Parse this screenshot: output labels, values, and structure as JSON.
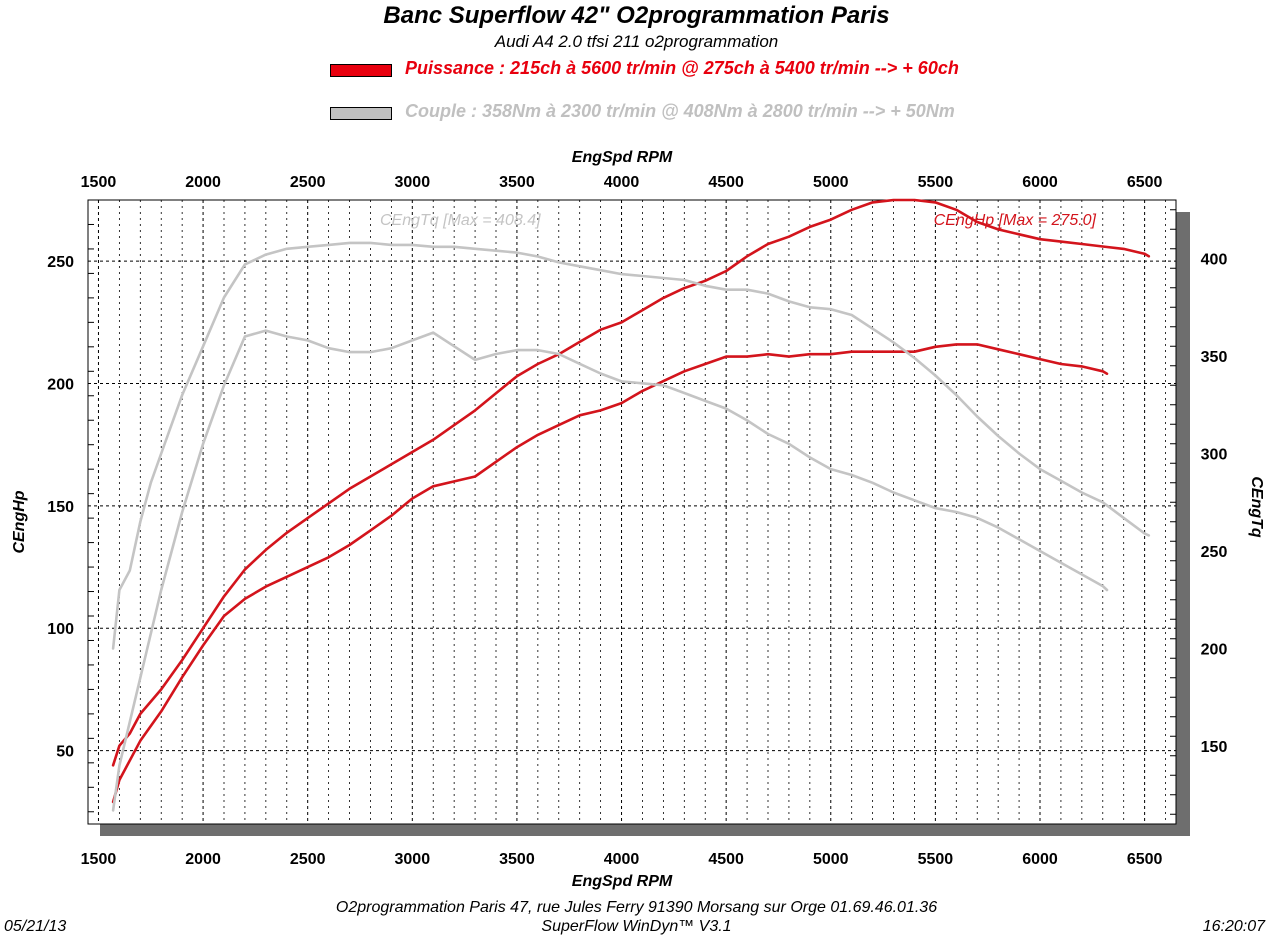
{
  "header": {
    "title": "Banc Superflow 42\" O2programmation Paris",
    "subtitle": "Audi A4 2.0 tfsi 211 o2programmation"
  },
  "legend": [
    {
      "label": "Puissance : 215ch à 5600 tr/min @ 275ch à 5400 tr/min --> + 60ch",
      "color": "#e8000e"
    },
    {
      "label": "Couple : 358Nm à 2300 tr/min @ 408Nm à 2800 tr/min --> + 50Nm",
      "color": "#c0c0c0"
    }
  ],
  "footer": {
    "date": "05/21/13",
    "address": "O2programmation Paris 47, rue Jules Ferry 91390 Morsang sur Orge 01.69.46.01.36",
    "software": "SuperFlow WinDyn™ V3.1",
    "time": "16:20:07"
  },
  "chart_data": {
    "type": "line",
    "xlabel_top": "EngSpd RPM",
    "xlabel_bottom": "EngSpd RPM",
    "ylabel_left": "CEngHp",
    "ylabel_right": "CEngTq",
    "xlim": [
      1450,
      6650
    ],
    "ylim_left": [
      20,
      275
    ],
    "ylim_right": [
      110,
      430
    ],
    "x_ticks": [
      1500,
      2000,
      2500,
      3000,
      3500,
      4000,
      4500,
      5000,
      5500,
      6000,
      6500
    ],
    "y_left_ticks": [
      50,
      100,
      150,
      200,
      250
    ],
    "y_right_ticks": [
      150,
      200,
      250,
      300,
      350,
      400
    ],
    "grid": true,
    "annotations": {
      "torque_max": "CEngTq [Max = 408.4]",
      "power_max": "CEngHp [Max = 275.0]"
    },
    "colors": {
      "power": "#d3141c",
      "torque": "#c4c4c4"
    },
    "series": [
      {
        "axis": "left",
        "kind": "power",
        "points": [
          [
            1570,
            44
          ],
          [
            1600,
            52
          ],
          [
            1650,
            57
          ],
          [
            1700,
            65
          ],
          [
            1800,
            75
          ],
          [
            1900,
            87
          ],
          [
            2000,
            100
          ],
          [
            2100,
            113
          ],
          [
            2200,
            124
          ],
          [
            2300,
            132
          ],
          [
            2400,
            139
          ],
          [
            2500,
            145
          ],
          [
            2600,
            151
          ],
          [
            2700,
            157
          ],
          [
            2800,
            162
          ],
          [
            2900,
            167
          ],
          [
            3000,
            172
          ],
          [
            3100,
            177
          ],
          [
            3200,
            183
          ],
          [
            3300,
            189
          ],
          [
            3400,
            196
          ],
          [
            3500,
            203
          ],
          [
            3600,
            208
          ],
          [
            3700,
            212
          ],
          [
            3800,
            217
          ],
          [
            3900,
            222
          ],
          [
            4000,
            225
          ],
          [
            4100,
            230
          ],
          [
            4200,
            235
          ],
          [
            4300,
            239
          ],
          [
            4400,
            242
          ],
          [
            4500,
            246
          ],
          [
            4600,
            252
          ],
          [
            4700,
            257
          ],
          [
            4800,
            260
          ],
          [
            4900,
            264
          ],
          [
            5000,
            267
          ],
          [
            5100,
            271
          ],
          [
            5200,
            274
          ],
          [
            5300,
            275
          ],
          [
            5400,
            275
          ],
          [
            5500,
            274
          ],
          [
            5600,
            271
          ],
          [
            5700,
            266
          ],
          [
            5800,
            263
          ],
          [
            5900,
            261
          ],
          [
            6000,
            259
          ],
          [
            6100,
            258
          ],
          [
            6200,
            257
          ],
          [
            6300,
            256
          ],
          [
            6400,
            255
          ],
          [
            6500,
            253
          ],
          [
            6520,
            252
          ]
        ]
      },
      {
        "axis": "left",
        "kind": "power",
        "points": [
          [
            1570,
            29
          ],
          [
            1600,
            38
          ],
          [
            1700,
            54
          ],
          [
            1800,
            66
          ],
          [
            1900,
            80
          ],
          [
            2000,
            93
          ],
          [
            2100,
            105
          ],
          [
            2200,
            112
          ],
          [
            2300,
            117
          ],
          [
            2400,
            121
          ],
          [
            2500,
            125
          ],
          [
            2600,
            129
          ],
          [
            2700,
            134
          ],
          [
            2800,
            140
          ],
          [
            2900,
            146
          ],
          [
            3000,
            153
          ],
          [
            3100,
            158
          ],
          [
            3200,
            160
          ],
          [
            3300,
            162
          ],
          [
            3400,
            168
          ],
          [
            3500,
            174
          ],
          [
            3600,
            179
          ],
          [
            3700,
            183
          ],
          [
            3800,
            187
          ],
          [
            3900,
            189
          ],
          [
            4000,
            192
          ],
          [
            4100,
            197
          ],
          [
            4200,
            201
          ],
          [
            4300,
            205
          ],
          [
            4400,
            208
          ],
          [
            4500,
            211
          ],
          [
            4600,
            211
          ],
          [
            4700,
            212
          ],
          [
            4800,
            211
          ],
          [
            4900,
            212
          ],
          [
            5000,
            212
          ],
          [
            5100,
            213
          ],
          [
            5200,
            213
          ],
          [
            5300,
            213
          ],
          [
            5400,
            213
          ],
          [
            5500,
            215
          ],
          [
            5600,
            216
          ],
          [
            5700,
            216
          ],
          [
            5800,
            214
          ],
          [
            5900,
            212
          ],
          [
            6000,
            210
          ],
          [
            6100,
            208
          ],
          [
            6200,
            207
          ],
          [
            6300,
            205
          ],
          [
            6320,
            204
          ]
        ]
      },
      {
        "axis": "right",
        "kind": "torque",
        "points": [
          [
            1570,
            200
          ],
          [
            1600,
            230
          ],
          [
            1650,
            240
          ],
          [
            1700,
            265
          ],
          [
            1750,
            285
          ],
          [
            1800,
            300
          ],
          [
            1900,
            330
          ],
          [
            2000,
            355
          ],
          [
            2100,
            380
          ],
          [
            2200,
            397
          ],
          [
            2300,
            402
          ],
          [
            2400,
            405
          ],
          [
            2500,
            406
          ],
          [
            2600,
            407
          ],
          [
            2700,
            408
          ],
          [
            2800,
            408
          ],
          [
            2900,
            407
          ],
          [
            3000,
            407
          ],
          [
            3100,
            406
          ],
          [
            3200,
            406
          ],
          [
            3300,
            405
          ],
          [
            3400,
            404
          ],
          [
            3500,
            403
          ],
          [
            3600,
            401
          ],
          [
            3700,
            398
          ],
          [
            3800,
            396
          ],
          [
            3900,
            394
          ],
          [
            4000,
            392
          ],
          [
            4100,
            391
          ],
          [
            4200,
            390
          ],
          [
            4300,
            389
          ],
          [
            4400,
            386
          ],
          [
            4500,
            384
          ],
          [
            4600,
            384
          ],
          [
            4700,
            382
          ],
          [
            4800,
            378
          ],
          [
            4900,
            375
          ],
          [
            5000,
            374
          ],
          [
            5100,
            371
          ],
          [
            5200,
            364
          ],
          [
            5300,
            357
          ],
          [
            5400,
            349
          ],
          [
            5500,
            340
          ],
          [
            5600,
            330
          ],
          [
            5700,
            319
          ],
          [
            5800,
            309
          ],
          [
            5900,
            300
          ],
          [
            6000,
            292
          ],
          [
            6100,
            286
          ],
          [
            6200,
            280
          ],
          [
            6300,
            275
          ],
          [
            6400,
            267
          ],
          [
            6500,
            259
          ],
          [
            6520,
            258
          ]
        ]
      },
      {
        "axis": "right",
        "kind": "torque",
        "points": [
          [
            1570,
            117
          ],
          [
            1600,
            140
          ],
          [
            1700,
            185
          ],
          [
            1800,
            230
          ],
          [
            1900,
            270
          ],
          [
            2000,
            305
          ],
          [
            2100,
            335
          ],
          [
            2200,
            360
          ],
          [
            2300,
            363
          ],
          [
            2400,
            360
          ],
          [
            2500,
            358
          ],
          [
            2600,
            354
          ],
          [
            2700,
            352
          ],
          [
            2800,
            352
          ],
          [
            2900,
            354
          ],
          [
            3000,
            358
          ],
          [
            3100,
            362
          ],
          [
            3200,
            355
          ],
          [
            3300,
            348
          ],
          [
            3400,
            351
          ],
          [
            3500,
            353
          ],
          [
            3600,
            353
          ],
          [
            3700,
            351
          ],
          [
            3800,
            346
          ],
          [
            3900,
            341
          ],
          [
            4000,
            337
          ],
          [
            4100,
            336
          ],
          [
            4200,
            335
          ],
          [
            4300,
            331
          ],
          [
            4400,
            327
          ],
          [
            4500,
            323
          ],
          [
            4600,
            317
          ],
          [
            4700,
            310
          ],
          [
            4800,
            305
          ],
          [
            4900,
            298
          ],
          [
            5000,
            292
          ],
          [
            5100,
            289
          ],
          [
            5200,
            285
          ],
          [
            5300,
            280
          ],
          [
            5400,
            276
          ],
          [
            5500,
            272
          ],
          [
            5600,
            270
          ],
          [
            5700,
            267
          ],
          [
            5800,
            262
          ],
          [
            5900,
            256
          ],
          [
            6000,
            250
          ],
          [
            6100,
            244
          ],
          [
            6200,
            238
          ],
          [
            6300,
            232
          ],
          [
            6320,
            230
          ]
        ]
      }
    ]
  }
}
